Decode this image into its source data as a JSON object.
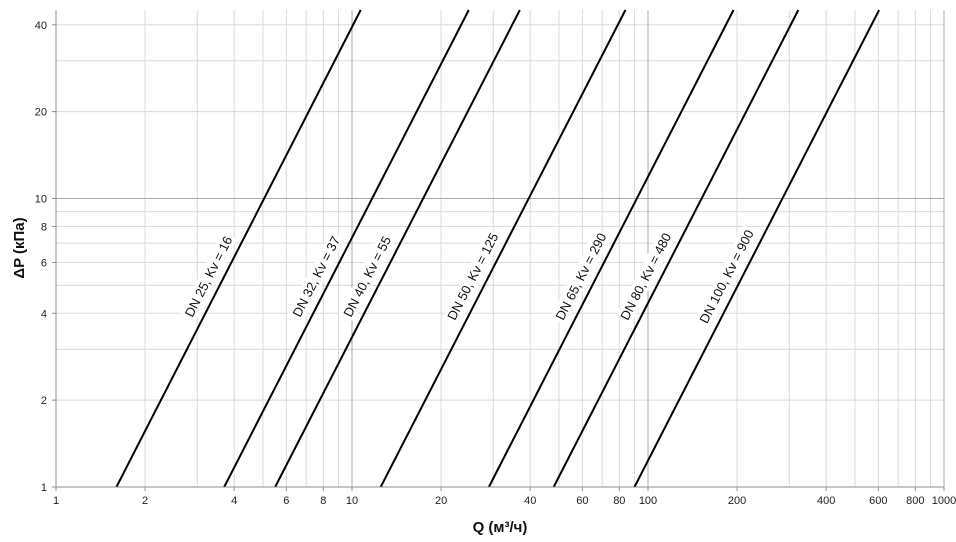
{
  "chart_data": {
    "type": "line",
    "xlabel": "Q (м³/ч)",
    "ylabel": "ΔP (кПа)",
    "x_scale": "log",
    "y_scale": "log",
    "xlim": [
      1,
      1000
    ],
    "ylim": [
      1,
      45
    ],
    "grid": true,
    "legend": "none",
    "x_ticks": [
      {
        "value": 1,
        "label": "1"
      },
      {
        "value": 2,
        "label": "2"
      },
      {
        "value": 4,
        "label": "4"
      },
      {
        "value": 6,
        "label": "6"
      },
      {
        "value": 8,
        "label": "8"
      },
      {
        "value": 10,
        "label": "10"
      },
      {
        "value": 20,
        "label": "20"
      },
      {
        "value": 40,
        "label": "40"
      },
      {
        "value": 60,
        "label": "60"
      },
      {
        "value": 80,
        "label": "80"
      },
      {
        "value": 100,
        "label": "100"
      },
      {
        "value": 200,
        "label": "200"
      },
      {
        "value": 400,
        "label": "400"
      },
      {
        "value": 600,
        "label": "600"
      },
      {
        "value": 800,
        "label": "800"
      },
      {
        "value": 1000,
        "label": "1000"
      }
    ],
    "y_ticks": [
      {
        "value": 1,
        "label": "1"
      },
      {
        "value": 2,
        "label": "2"
      },
      {
        "value": 4,
        "label": "4"
      },
      {
        "value": 6,
        "label": "6"
      },
      {
        "value": 8,
        "label": "8"
      },
      {
        "value": 10,
        "label": "10"
      },
      {
        "value": 20,
        "label": "20"
      },
      {
        "value": 40,
        "label": "40"
      }
    ],
    "series": [
      {
        "name": "DN 25, Kv = 16",
        "kv": 16,
        "x": [
          1.6,
          10.7
        ],
        "y": [
          1,
          45
        ]
      },
      {
        "name": "DN 32, Kv = 37",
        "kv": 37,
        "x": [
          3.7,
          24.8
        ],
        "y": [
          1,
          45
        ]
      },
      {
        "name": "DN 40, Kv = 55",
        "kv": 55,
        "x": [
          5.5,
          36.9
        ],
        "y": [
          1,
          45
        ]
      },
      {
        "name": "DN 50, Kv = 125",
        "kv": 125,
        "x": [
          12.5,
          83.9
        ],
        "y": [
          1,
          45
        ]
      },
      {
        "name": "DN 65, Kv = 290",
        "kv": 290,
        "x": [
          29,
          194.5
        ],
        "y": [
          1,
          45
        ]
      },
      {
        "name": "DN 80, Kv = 480",
        "kv": 480,
        "x": [
          48,
          322
        ],
        "y": [
          1,
          45
        ]
      },
      {
        "name": "DN 100, Kv = 900",
        "kv": 900,
        "x": [
          90,
          603.7
        ],
        "y": [
          1,
          45
        ]
      }
    ]
  }
}
